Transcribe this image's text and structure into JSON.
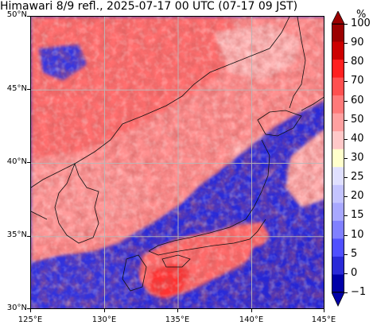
{
  "title": "Himawari 8/9 refl., 2025-07-17 00 UTC (07-17 09 JST)",
  "map": {
    "lon_range": [
      125,
      145
    ],
    "lat_range": [
      30,
      50
    ],
    "lat_ticks": [
      "30°N",
      "35°N",
      "40°N",
      "45°N",
      "50°N"
    ],
    "lon_ticks": [
      "125°E",
      "130°E",
      "135°E",
      "140°E",
      "145°E"
    ],
    "gridlines": true,
    "colors": {
      "frame": "#000000",
      "gridline": "#b8b8b8",
      "coastline": "#111111"
    }
  },
  "colorbar": {
    "unit": "%",
    "labels": [
      "100",
      "90",
      "80",
      "70",
      "60",
      "50",
      "40",
      "30",
      "25",
      "20",
      "15",
      "10",
      "5",
      "0",
      "−1"
    ],
    "colors_top_to_bottom": [
      "#9b0000",
      "#cc0000",
      "#ff2020",
      "#ff5050",
      "#ff7a7a",
      "#ffa0a0",
      "#ffc8c8",
      "#ffffcc",
      "#e0e0ff",
      "#c4c4ff",
      "#a8a8ff",
      "#8080ff",
      "#5050ff",
      "#2a2ad8",
      "#0000a8"
    ],
    "extend_arrows": "both"
  }
}
